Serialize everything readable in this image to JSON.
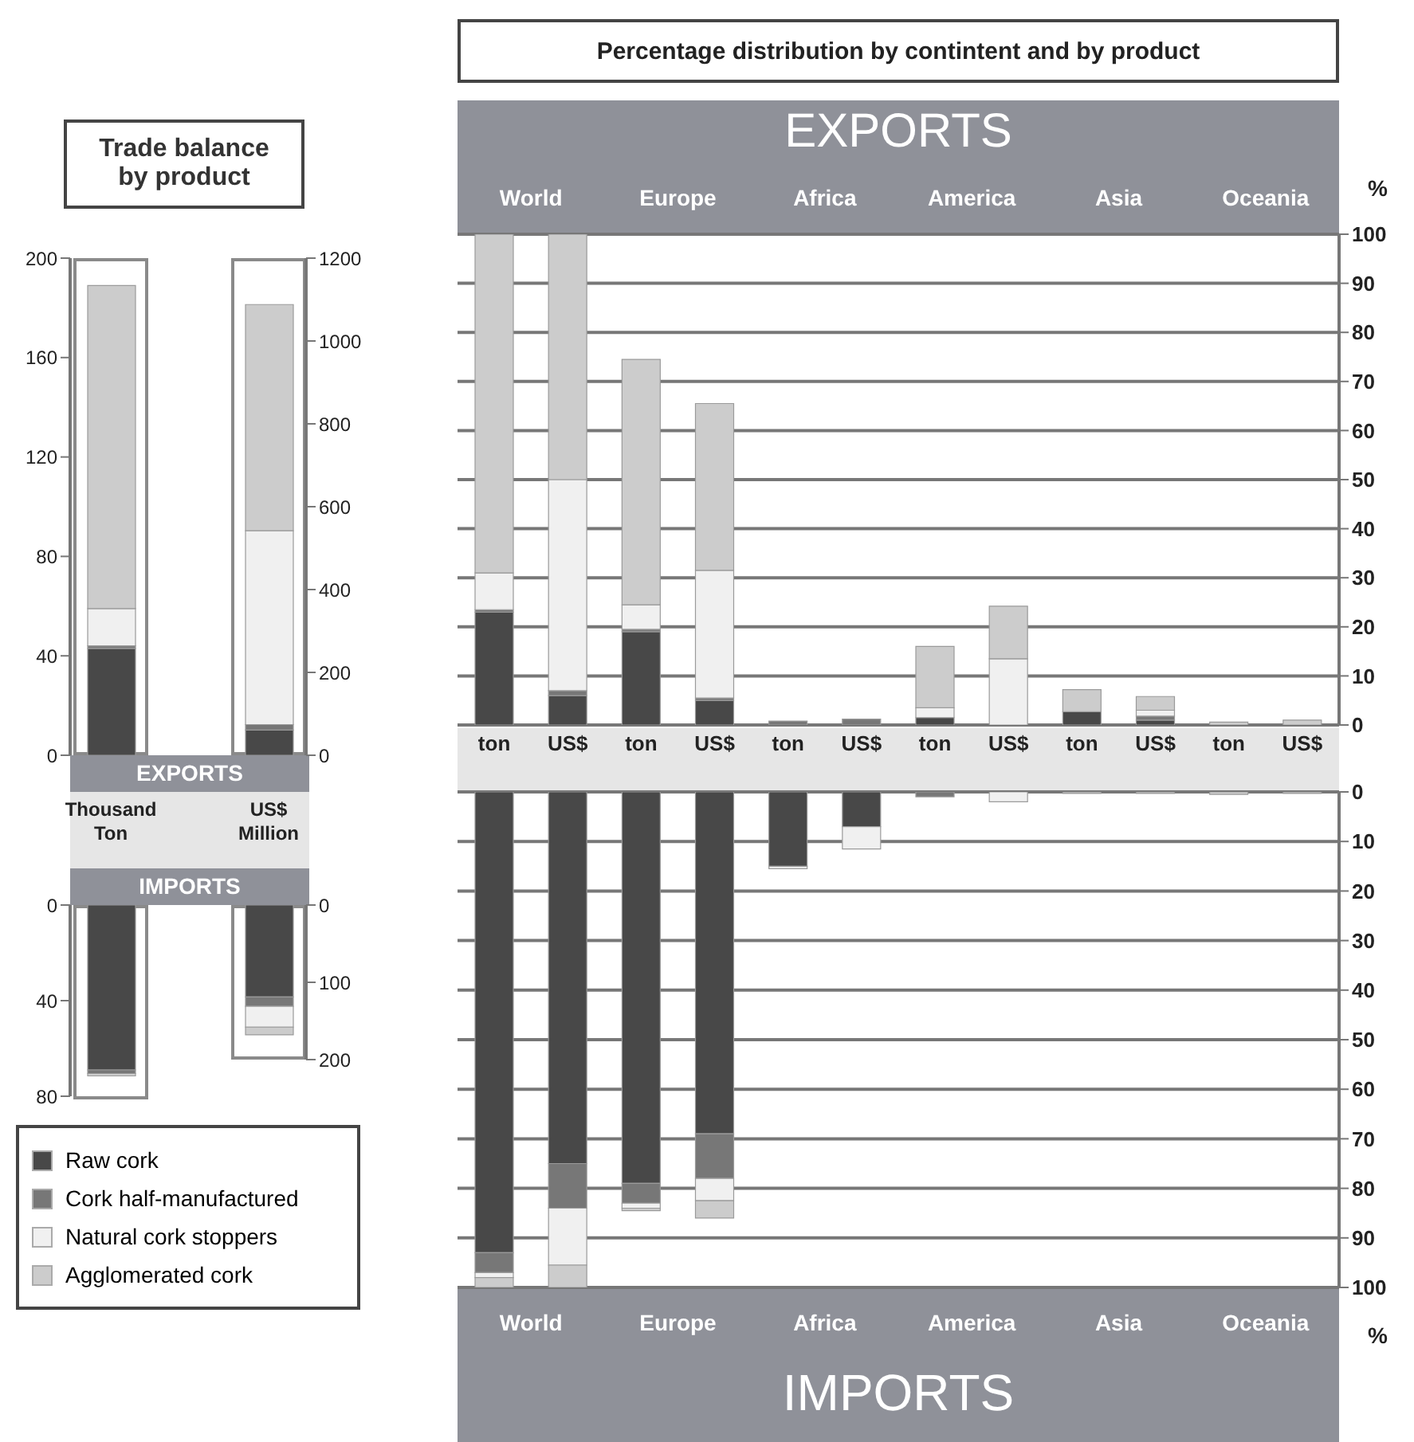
{
  "chart_data": [
    {
      "type": "bar",
      "title": "Trade balance by product",
      "categories": [
        "Thousand Ton"
      ],
      "stacked": true,
      "ylim": [
        0,
        200
      ],
      "yticks": [
        0,
        40,
        80,
        120,
        160,
        200
      ],
      "annotations": [
        "EXPORTS"
      ],
      "legend": "bottom",
      "series": [
        {
          "name": "Raw cork",
          "color": "#484848",
          "values": [
            43
          ]
        },
        {
          "name": "Cork half-manufactured",
          "color": "#777777",
          "values": [
            1
          ]
        },
        {
          "name": "Natural cork stoppers",
          "color": "#f0f0f0",
          "values": [
            15
          ]
        },
        {
          "name": "Agglomerated cork",
          "color": "#cccccc",
          "values": [
            130
          ]
        }
      ]
    },
    {
      "type": "bar",
      "categories": [
        "US$ Million"
      ],
      "stacked": true,
      "ylim": [
        0,
        1200
      ],
      "yticks": [
        0,
        200,
        400,
        600,
        800,
        1000,
        1200
      ],
      "series": [
        {
          "color": "#484848",
          "values": [
            61
          ]
        },
        {
          "color": "#777777",
          "values": [
            13
          ]
        },
        {
          "color": "#f0f0f0",
          "values": [
            468
          ]
        },
        {
          "color": "#cccccc",
          "values": [
            546
          ]
        }
      ]
    },
    {
      "type": "bar",
      "categories": [
        null
      ],
      "stacked": true,
      "ylim": [
        80,
        0
      ],
      "yticks": [
        0,
        40,
        80
      ],
      "annotations": [
        "IMPORTS"
      ],
      "tick_labels": "y",
      "series": [
        {
          "color": "#484848",
          "values": [
            69
          ]
        },
        {
          "color": "#777777",
          "values": [
            1.5
          ]
        },
        {
          "color": "#f0f0f0",
          "values": [
            null
          ]
        },
        {
          "color": "#cccccc",
          "values": [
            1
          ]
        }
      ]
    },
    {
      "type": "bar",
      "categories": [
        null
      ],
      "stacked": true,
      "ylim": [
        200,
        0
      ],
      "yticks": [
        0,
        100,
        200
      ],
      "tick_labels": "y",
      "series": [
        {
          "color": "#484848",
          "values": [
            119
          ]
        },
        {
          "color": "#777777",
          "values": [
            12
          ]
        },
        {
          "color": "#f0f0f0",
          "values": [
            27
          ]
        },
        {
          "color": "#cccccc",
          "values": [
            10
          ]
        }
      ]
    },
    {
      "type": "bar",
      "title": "Percentage distribution by contintent and by product",
      "categories": [
        "ton",
        "US$",
        "ton",
        "US$",
        "ton",
        "US$",
        "ton",
        "US$",
        "ton",
        "US$",
        "ton",
        "US$"
      ],
      "stacked": true,
      "ylim": [
        0,
        100
      ],
      "yticks": [
        0,
        10,
        20,
        30,
        40,
        50,
        60,
        70,
        80,
        90,
        100
      ],
      "ylabel": "%",
      "grid": "y",
      "annotations": [
        "EXPORTS",
        "World",
        "Europe",
        "Africa",
        "America",
        "Asia",
        "Oceania"
      ],
      "series": [
        {
          "color": "#484848",
          "values": [
            23,
            6,
            19,
            5,
            0,
            0,
            1.5,
            null,
            2.7,
            1,
            0,
            0
          ]
        },
        {
          "color": "#777777",
          "values": [
            0.5,
            1,
            0.5,
            0.5,
            0.8,
            1.2,
            0,
            0,
            0,
            0.8,
            0,
            0
          ]
        },
        {
          "color": "#f0f0f0",
          "values": [
            7.5,
            43,
            5,
            26,
            0,
            0,
            2,
            13.5,
            0,
            1.2,
            0,
            0
          ]
        },
        {
          "color": "#cccccc",
          "values": [
            69,
            50,
            50,
            34,
            0,
            0,
            12.5,
            10.7,
            4.5,
            2.8,
            0.6,
            1
          ]
        }
      ]
    },
    {
      "type": "bar",
      "categories": [
        null,
        null,
        null,
        null,
        null,
        null,
        null,
        null,
        null,
        null,
        null,
        null
      ],
      "stacked": true,
      "ylim": [
        100,
        0
      ],
      "yticks": [
        0,
        10,
        20,
        30,
        40,
        50,
        60,
        70,
        80,
        90,
        100
      ],
      "ylabel": "%",
      "grid": "y",
      "tick_labels": "y",
      "annotations": [
        "IMPORTS",
        "World",
        "Europe",
        "Africa",
        "America",
        "Asia",
        "Oceania"
      ],
      "series": [
        {
          "color": "#484848",
          "values": [
            93,
            75,
            79,
            69,
            15,
            7,
            0,
            0,
            0,
            0,
            0,
            0
          ]
        },
        {
          "color": "#777777",
          "values": [
            4,
            9,
            4,
            9,
            0,
            0,
            1,
            0,
            0,
            0,
            0,
            0
          ]
        },
        {
          "color": "#f0f0f0",
          "values": [
            1,
            11.5,
            1,
            4.5,
            0.5,
            4.5,
            0,
            2,
            0,
            0,
            0,
            0
          ]
        },
        {
          "color": "#cccccc",
          "values": [
            2,
            4.5,
            0.5,
            3.5,
            0,
            0,
            0,
            0,
            0.3,
            0.3,
            0.5,
            0.3
          ]
        }
      ]
    }
  ]
}
